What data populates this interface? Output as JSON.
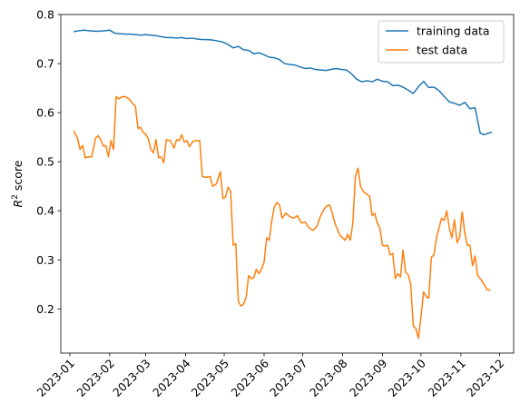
{
  "chart_data": {
    "type": "line",
    "title": "",
    "xlabel": "",
    "ylabel_prefix": "R",
    "ylabel_sup": "2",
    "ylabel_suffix": " score",
    "ylim": [
      0.11,
      0.8
    ],
    "xlim": [
      "2022-12-25",
      "2023-12-12"
    ],
    "y_ticks": [
      0.2,
      0.3,
      0.4,
      0.5,
      0.6,
      0.7,
      0.8
    ],
    "x_ticks": [
      "2023-01",
      "2023-02",
      "2023-03",
      "2023-04",
      "2023-05",
      "2023-06",
      "2023-07",
      "2023-08",
      "2023-09",
      "2023-10",
      "2023-11",
      "2023-12"
    ],
    "legend_position": "upper-right",
    "grid": false,
    "series": [
      {
        "name": "training data",
        "color": "#1f77b4",
        "points": [
          [
            "2023-01-04",
            0.765
          ],
          [
            "2023-01-08",
            0.767
          ],
          [
            "2023-01-12",
            0.768
          ],
          [
            "2023-01-16",
            0.767
          ],
          [
            "2023-01-20",
            0.766
          ],
          [
            "2023-01-24",
            0.766
          ],
          [
            "2023-01-28",
            0.767
          ],
          [
            "2023-02-01",
            0.768
          ],
          [
            "2023-02-05",
            0.762
          ],
          [
            "2023-02-09",
            0.761
          ],
          [
            "2023-02-13",
            0.76
          ],
          [
            "2023-02-17",
            0.76
          ],
          [
            "2023-02-21",
            0.759
          ],
          [
            "2023-02-25",
            0.758
          ],
          [
            "2023-03-01",
            0.759
          ],
          [
            "2023-03-05",
            0.758
          ],
          [
            "2023-03-09",
            0.757
          ],
          [
            "2023-03-13",
            0.755
          ],
          [
            "2023-03-17",
            0.753
          ],
          [
            "2023-03-21",
            0.753
          ],
          [
            "2023-03-25",
            0.752
          ],
          [
            "2023-03-29",
            0.753
          ],
          [
            "2023-04-02",
            0.751
          ],
          [
            "2023-04-06",
            0.752
          ],
          [
            "2023-04-10",
            0.75
          ],
          [
            "2023-04-14",
            0.749
          ],
          [
            "2023-04-18",
            0.749
          ],
          [
            "2023-04-22",
            0.748
          ],
          [
            "2023-04-26",
            0.746
          ],
          [
            "2023-04-30",
            0.744
          ],
          [
            "2023-05-04",
            0.739
          ],
          [
            "2023-05-08",
            0.732
          ],
          [
            "2023-05-12",
            0.735
          ],
          [
            "2023-05-16",
            0.728
          ],
          [
            "2023-05-20",
            0.727
          ],
          [
            "2023-05-24",
            0.72
          ],
          [
            "2023-05-28",
            0.722
          ],
          [
            "2023-06-01",
            0.718
          ],
          [
            "2023-06-05",
            0.713
          ],
          [
            "2023-06-09",
            0.712
          ],
          [
            "2023-06-13",
            0.708
          ],
          [
            "2023-06-17",
            0.7
          ],
          [
            "2023-06-21",
            0.698
          ],
          [
            "2023-06-25",
            0.697
          ],
          [
            "2023-06-29",
            0.693
          ],
          [
            "2023-07-03",
            0.69
          ],
          [
            "2023-07-07",
            0.691
          ],
          [
            "2023-07-11",
            0.688
          ],
          [
            "2023-07-15",
            0.687
          ],
          [
            "2023-07-19",
            0.686
          ],
          [
            "2023-07-23",
            0.688
          ],
          [
            "2023-07-27",
            0.69
          ],
          [
            "2023-07-31",
            0.688
          ],
          [
            "2023-08-04",
            0.687
          ],
          [
            "2023-08-08",
            0.679
          ],
          [
            "2023-08-12",
            0.668
          ],
          [
            "2023-08-16",
            0.663
          ],
          [
            "2023-08-20",
            0.665
          ],
          [
            "2023-08-24",
            0.663
          ],
          [
            "2023-08-28",
            0.668
          ],
          [
            "2023-09-01",
            0.664
          ],
          [
            "2023-09-05",
            0.663
          ],
          [
            "2023-09-09",
            0.655
          ],
          [
            "2023-09-13",
            0.656
          ],
          [
            "2023-09-17",
            0.652
          ],
          [
            "2023-09-21",
            0.646
          ],
          [
            "2023-09-25",
            0.639
          ],
          [
            "2023-09-29",
            0.653
          ],
          [
            "2023-10-03",
            0.664
          ],
          [
            "2023-10-07",
            0.651
          ],
          [
            "2023-10-11",
            0.652
          ],
          [
            "2023-10-15",
            0.645
          ],
          [
            "2023-10-19",
            0.633
          ],
          [
            "2023-10-23",
            0.622
          ],
          [
            "2023-10-27",
            0.619
          ],
          [
            "2023-10-31",
            0.615
          ],
          [
            "2023-11-04",
            0.621
          ],
          [
            "2023-11-08",
            0.608
          ],
          [
            "2023-11-12",
            0.61
          ],
          [
            "2023-11-16",
            0.558
          ],
          [
            "2023-11-19",
            0.555
          ],
          [
            "2023-11-22",
            0.558
          ],
          [
            "2023-11-25",
            0.56
          ]
        ]
      },
      {
        "name": "test data",
        "color": "#ff7f0e",
        "points": [
          [
            "2023-01-04",
            0.563
          ],
          [
            "2023-01-07",
            0.548
          ],
          [
            "2023-01-09",
            0.525
          ],
          [
            "2023-01-11",
            0.533
          ],
          [
            "2023-01-13",
            0.508
          ],
          [
            "2023-01-16",
            0.51
          ],
          [
            "2023-01-18",
            0.51
          ],
          [
            "2023-01-21",
            0.548
          ],
          [
            "2023-01-23",
            0.553
          ],
          [
            "2023-01-25",
            0.545
          ],
          [
            "2023-01-27",
            0.532
          ],
          [
            "2023-01-29",
            0.533
          ],
          [
            "2023-01-31",
            0.51
          ],
          [
            "2023-02-02",
            0.543
          ],
          [
            "2023-02-04",
            0.525
          ],
          [
            "2023-02-06",
            0.633
          ],
          [
            "2023-02-08",
            0.628
          ],
          [
            "2023-02-10",
            0.632
          ],
          [
            "2023-02-13",
            0.633
          ],
          [
            "2023-02-16",
            0.628
          ],
          [
            "2023-02-19",
            0.618
          ],
          [
            "2023-02-21",
            0.613
          ],
          [
            "2023-02-23",
            0.568
          ],
          [
            "2023-02-25",
            0.57
          ],
          [
            "2023-02-27",
            0.56
          ],
          [
            "2023-03-01",
            0.556
          ],
          [
            "2023-03-03",
            0.547
          ],
          [
            "2023-03-05",
            0.525
          ],
          [
            "2023-03-07",
            0.518
          ],
          [
            "2023-03-09",
            0.545
          ],
          [
            "2023-03-11",
            0.508
          ],
          [
            "2023-03-13",
            0.51
          ],
          [
            "2023-03-15",
            0.498
          ],
          [
            "2023-03-17",
            0.545
          ],
          [
            "2023-03-20",
            0.543
          ],
          [
            "2023-03-23",
            0.528
          ],
          [
            "2023-03-25",
            0.545
          ],
          [
            "2023-03-27",
            0.543
          ],
          [
            "2023-03-29",
            0.555
          ],
          [
            "2023-03-31",
            0.54
          ],
          [
            "2023-04-02",
            0.543
          ],
          [
            "2023-04-04",
            0.531
          ],
          [
            "2023-04-07",
            0.542
          ],
          [
            "2023-04-09",
            0.543
          ],
          [
            "2023-04-12",
            0.543
          ],
          [
            "2023-04-14",
            0.47
          ],
          [
            "2023-04-17",
            0.468
          ],
          [
            "2023-04-20",
            0.47
          ],
          [
            "2023-04-22",
            0.45
          ],
          [
            "2023-04-25",
            0.455
          ],
          [
            "2023-04-28",
            0.48
          ],
          [
            "2023-04-30",
            0.425
          ],
          [
            "2023-05-02",
            0.428
          ],
          [
            "2023-05-04",
            0.448
          ],
          [
            "2023-05-06",
            0.44
          ],
          [
            "2023-05-08",
            0.33
          ],
          [
            "2023-05-10",
            0.333
          ],
          [
            "2023-05-12",
            0.215
          ],
          [
            "2023-05-14",
            0.206
          ],
          [
            "2023-05-16",
            0.21
          ],
          [
            "2023-05-18",
            0.223
          ],
          [
            "2023-05-20",
            0.268
          ],
          [
            "2023-05-22",
            0.262
          ],
          [
            "2023-05-24",
            0.263
          ],
          [
            "2023-05-26",
            0.281
          ],
          [
            "2023-05-28",
            0.272
          ],
          [
            "2023-05-30",
            0.281
          ],
          [
            "2023-06-01",
            0.295
          ],
          [
            "2023-06-03",
            0.345
          ],
          [
            "2023-06-05",
            0.34
          ],
          [
            "2023-06-07",
            0.38
          ],
          [
            "2023-06-09",
            0.408
          ],
          [
            "2023-06-11",
            0.417
          ],
          [
            "2023-06-13",
            0.412
          ],
          [
            "2023-06-15",
            0.385
          ],
          [
            "2023-06-18",
            0.395
          ],
          [
            "2023-06-21",
            0.388
          ],
          [
            "2023-06-24",
            0.385
          ],
          [
            "2023-06-27",
            0.39
          ],
          [
            "2023-06-30",
            0.375
          ],
          [
            "2023-07-03",
            0.377
          ],
          [
            "2023-07-06",
            0.365
          ],
          [
            "2023-07-09",
            0.36
          ],
          [
            "2023-07-12",
            0.368
          ],
          [
            "2023-07-15",
            0.39
          ],
          [
            "2023-07-18",
            0.405
          ],
          [
            "2023-07-20",
            0.41
          ],
          [
            "2023-07-22",
            0.412
          ],
          [
            "2023-07-24",
            0.395
          ],
          [
            "2023-07-26",
            0.375
          ],
          [
            "2023-07-28",
            0.362
          ],
          [
            "2023-07-30",
            0.35
          ],
          [
            "2023-08-01",
            0.345
          ],
          [
            "2023-08-03",
            0.34
          ],
          [
            "2023-08-05",
            0.352
          ],
          [
            "2023-08-07",
            0.34
          ],
          [
            "2023-08-09",
            0.375
          ],
          [
            "2023-08-11",
            0.47
          ],
          [
            "2023-08-13",
            0.487
          ],
          [
            "2023-08-15",
            0.45
          ],
          [
            "2023-08-17",
            0.44
          ],
          [
            "2023-08-19",
            0.435
          ],
          [
            "2023-08-22",
            0.43
          ],
          [
            "2023-08-24",
            0.39
          ],
          [
            "2023-08-26",
            0.395
          ],
          [
            "2023-08-28",
            0.375
          ],
          [
            "2023-08-30",
            0.365
          ],
          [
            "2023-09-01",
            0.33
          ],
          [
            "2023-09-03",
            0.328
          ],
          [
            "2023-09-05",
            0.33
          ],
          [
            "2023-09-07",
            0.31
          ],
          [
            "2023-09-09",
            0.313
          ],
          [
            "2023-09-11",
            0.262
          ],
          [
            "2023-09-13",
            0.272
          ],
          [
            "2023-09-15",
            0.265
          ],
          [
            "2023-09-17",
            0.32
          ],
          [
            "2023-09-19",
            0.275
          ],
          [
            "2023-09-21",
            0.27
          ],
          [
            "2023-09-23",
            0.25
          ],
          [
            "2023-09-25",
            0.165
          ],
          [
            "2023-09-27",
            0.16
          ],
          [
            "2023-09-29",
            0.14
          ],
          [
            "2023-10-01",
            0.185
          ],
          [
            "2023-10-03",
            0.235
          ],
          [
            "2023-10-05",
            0.225
          ],
          [
            "2023-10-07",
            0.222
          ],
          [
            "2023-10-09",
            0.305
          ],
          [
            "2023-10-11",
            0.31
          ],
          [
            "2023-10-13",
            0.345
          ],
          [
            "2023-10-15",
            0.365
          ],
          [
            "2023-10-17",
            0.385
          ],
          [
            "2023-10-19",
            0.38
          ],
          [
            "2023-10-21",
            0.4
          ],
          [
            "2023-10-23",
            0.365
          ],
          [
            "2023-10-25",
            0.345
          ],
          [
            "2023-10-27",
            0.382
          ],
          [
            "2023-10-29",
            0.335
          ],
          [
            "2023-10-31",
            0.345
          ],
          [
            "2023-11-02",
            0.398
          ],
          [
            "2023-11-04",
            0.355
          ],
          [
            "2023-11-06",
            0.33
          ],
          [
            "2023-11-08",
            0.33
          ],
          [
            "2023-11-10",
            0.288
          ],
          [
            "2023-11-12",
            0.308
          ],
          [
            "2023-11-14",
            0.268
          ],
          [
            "2023-11-16",
            0.262
          ],
          [
            "2023-11-19",
            0.25
          ],
          [
            "2023-11-21",
            0.24
          ],
          [
            "2023-11-24",
            0.238
          ]
        ]
      }
    ]
  }
}
